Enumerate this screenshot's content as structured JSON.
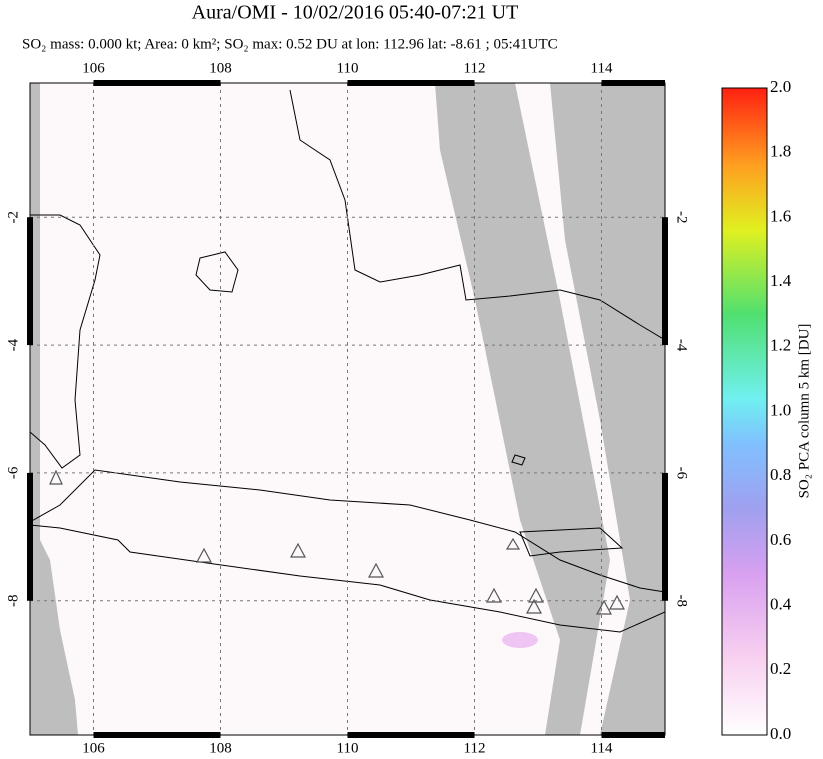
{
  "chart_data": {
    "type": "map",
    "title": "Aura/OMI - 10/02/2016 05:40-07:21 UT",
    "subtitle": "SO₂ mass: 0.000 kt; Area: 0 km²; SO₂ max: 0.52 DU at lon: 112.96 lat: -8.61 ; 05:41UTC",
    "xlim": [
      105,
      115
    ],
    "xticks": [
      106,
      108,
      110,
      112,
      114
    ],
    "ylim": [
      -10.1,
      0.1
    ],
    "yticks": [
      -2,
      -4,
      -6,
      -8
    ],
    "grid": true,
    "colorbar": {
      "label": "SO₂ PCA column 5 km [DU]",
      "lim": [
        0,
        2
      ],
      "ticks": [
        {
          "value": 0,
          "label": "0.0"
        },
        0.2,
        0.4,
        0.6,
        0.8,
        {
          "value": 1,
          "label": "1.0"
        },
        1.2,
        1.4,
        1.6,
        1.8,
        {
          "value": 2,
          "label": "2.0"
        }
      ]
    }
  }
}
